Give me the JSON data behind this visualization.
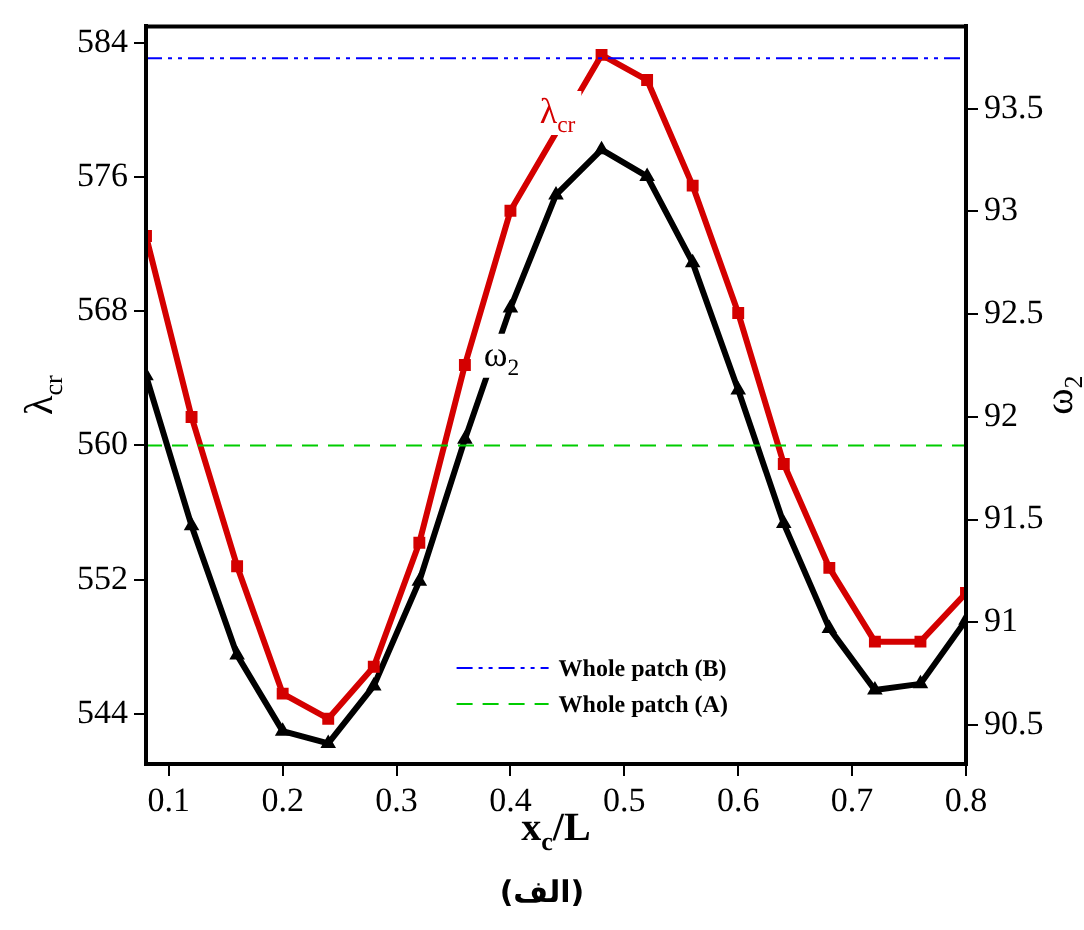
{
  "chart_data": {
    "type": "line",
    "xlabel": "x$_{c}$/L",
    "ylabel": "λ$_{cr}$",
    "y2label": "ω$_{2}$",
    "x": [
      0.08,
      0.12,
      0.16,
      0.2,
      0.24,
      0.28,
      0.32,
      0.36,
      0.4,
      0.44,
      0.48,
      0.52,
      0.56,
      0.6,
      0.64,
      0.68,
      0.72,
      0.76,
      0.8
    ],
    "series": [
      {
        "name": "λ$_{cr}$",
        "color": "#d40000",
        "marker": "square",
        "values": [
          572.5,
          561.7,
          552.8,
          545.2,
          543.7,
          546.8,
          554.2,
          564.8,
          574.0,
          null,
          583.3,
          581.8,
          575.5,
          567.9,
          558.9,
          552.7,
          548.3,
          548.3,
          551.2
        ]
      },
      {
        "name": "ω$_{2}$",
        "color": "#000000",
        "marker": "triangle",
        "axis": "y2",
        "values": [
          92.2,
          91.47,
          90.84,
          90.47,
          90.41,
          90.69,
          91.2,
          91.89,
          92.53,
          93.08,
          93.3,
          93.17,
          92.75,
          92.13,
          91.48,
          90.97,
          90.67,
          90.7,
          91.01
        ]
      }
    ],
    "xlim": [
      0.08,
      0.8
    ],
    "xticks": [
      0.1,
      0.2,
      0.3,
      0.4,
      0.5,
      0.6,
      0.7,
      0.8
    ],
    "ylim": [
      541,
      585
    ],
    "yticks": [
      544,
      552,
      560,
      568,
      576,
      584
    ],
    "y2lim": [
      90.31,
      93.9
    ],
    "y2ticks": [
      90.5,
      91,
      91.5,
      92,
      92.5,
      93,
      93.5
    ],
    "ref_lines": [
      {
        "axis": "y",
        "value": 583.1,
        "label": "Whole patch (B)",
        "color": "#0000ff",
        "line_style": "dashdot"
      },
      {
        "axis": "y",
        "value": 560,
        "label": "Whole patch (A)",
        "color": "#00cc00",
        "line_style": "dashed"
      }
    ],
    "legend": "bottom",
    "grid": false,
    "annotations": [
      "(الف)"
    ]
  }
}
